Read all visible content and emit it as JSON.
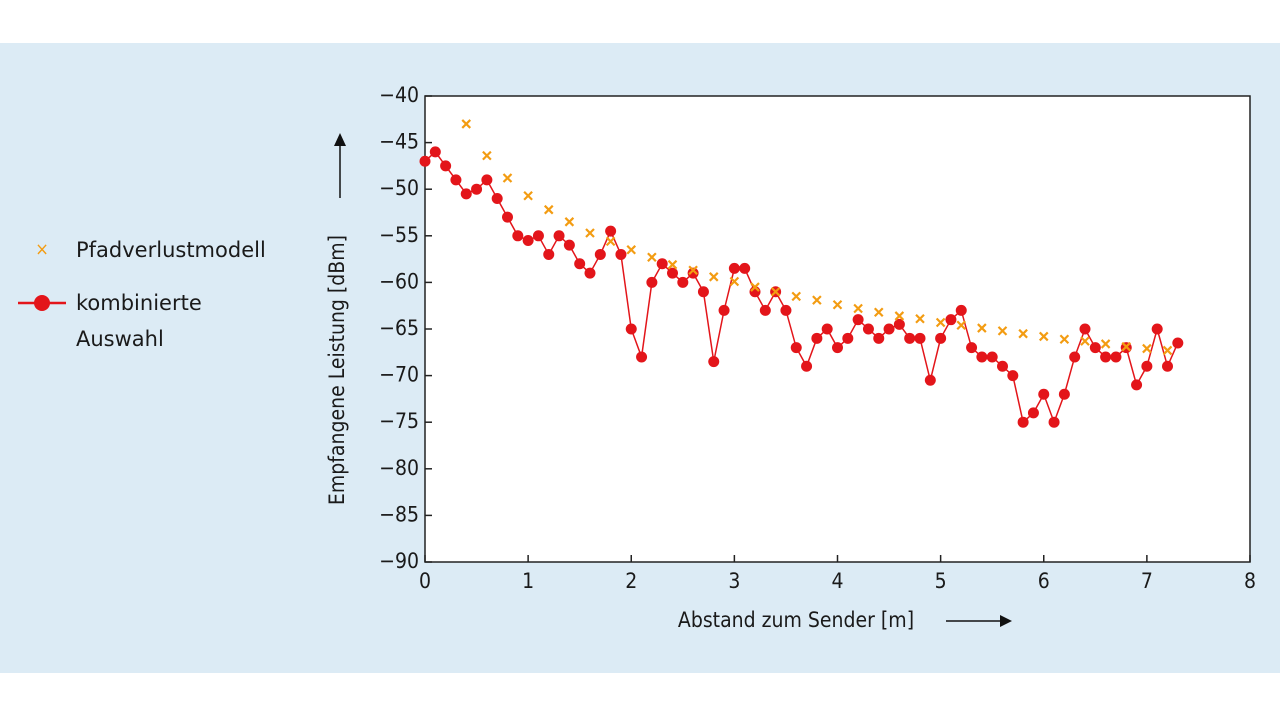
{
  "chart_data": {
    "type": "scatter",
    "xlabel": "Abstand zum Sender [m]",
    "ylabel": "Empfangene Leistung [dBm]",
    "xlim": [
      0,
      8
    ],
    "xticks": [
      0,
      1,
      2,
      3,
      4,
      5,
      6,
      7,
      8
    ],
    "ylim": [
      -90,
      -40
    ],
    "yticks": [
      {
        "value": -40,
        "label": "−40"
      },
      {
        "value": -45,
        "label": "−45"
      },
      {
        "value": -50,
        "label": "−50"
      },
      {
        "value": -55,
        "label": "−55"
      },
      {
        "value": -60,
        "label": "−60"
      },
      {
        "value": -65,
        "label": "−65"
      },
      {
        "value": -70,
        "label": "−70"
      },
      {
        "value": -75,
        "label": "−75"
      },
      {
        "value": -80,
        "label": "−80"
      },
      {
        "value": -85,
        "label": "−85"
      },
      {
        "value": -90,
        "label": "−90"
      }
    ],
    "series": [
      {
        "name": "Pfadverlustmodell",
        "color": "#f39c12",
        "marker": "x",
        "x": [
          0.4,
          0.6,
          0.8,
          1.0,
          1.2,
          1.4,
          1.6,
          1.8,
          2.0,
          2.2,
          2.4,
          2.6,
          2.8,
          3.0,
          3.2,
          3.4,
          3.6,
          3.8,
          4.0,
          4.2,
          4.4,
          4.6,
          4.8,
          5.0,
          5.2,
          5.4,
          5.6,
          5.8,
          6.0,
          6.2,
          6.4,
          6.6,
          6.8,
          7.0,
          7.2
        ],
        "values": [
          -43.0,
          -46.4,
          -48.8,
          -50.7,
          -52.2,
          -53.5,
          -54.7,
          -55.6,
          -56.5,
          -57.3,
          -58.1,
          -58.7,
          -59.4,
          -59.9,
          -60.5,
          -61.0,
          -61.5,
          -61.9,
          -62.4,
          -62.8,
          -63.2,
          -63.6,
          -63.9,
          -64.3,
          -64.6,
          -64.9,
          -65.2,
          -65.5,
          -65.8,
          -66.1,
          -66.3,
          -66.6,
          -66.9,
          -67.1,
          -67.3
        ]
      },
      {
        "name": "kombinierte Auswahl",
        "color": "#e3151a",
        "marker": "o-",
        "x": [
          0.0,
          0.1,
          0.2,
          0.3,
          0.4,
          0.5,
          0.6,
          0.7,
          0.8,
          0.9,
          1.0,
          1.1,
          1.2,
          1.3,
          1.4,
          1.5,
          1.6,
          1.7,
          1.8,
          1.9,
          2.0,
          2.1,
          2.2,
          2.3,
          2.4,
          2.5,
          2.6,
          2.7,
          2.8,
          2.9,
          3.0,
          3.1,
          3.2,
          3.3,
          3.4,
          3.5,
          3.6,
          3.7,
          3.8,
          3.9,
          4.0,
          4.1,
          4.2,
          4.3,
          4.4,
          4.5,
          4.6,
          4.7,
          4.8,
          4.9,
          5.0,
          5.1,
          5.2,
          5.3,
          5.4,
          5.5,
          5.6,
          5.7,
          5.8,
          5.9,
          6.0,
          6.1,
          6.2,
          6.3,
          6.4,
          6.5,
          6.6,
          6.7,
          6.8,
          6.9,
          7.0,
          7.1,
          7.2,
          7.3
        ],
        "values": [
          -47,
          -46,
          -47.5,
          -49,
          -50.5,
          -50,
          -49,
          -51,
          -53,
          -55,
          -55.5,
          -55,
          -57,
          -55,
          -56,
          -58,
          -59,
          -57,
          -54.5,
          -57,
          -65,
          -68,
          -60,
          -58,
          -59,
          -60,
          -59,
          -61,
          -68.5,
          -63,
          -58.5,
          -58.5,
          -61,
          -63,
          -61,
          -63,
          -67,
          -69,
          -66,
          -65,
          -67,
          -66,
          -64,
          -65,
          -66,
          -65,
          -64.5,
          -66,
          -66,
          -70.5,
          -66,
          -64,
          -63,
          -67,
          -68,
          -68,
          -69,
          -70,
          -75,
          -74,
          -72,
          -75,
          -72,
          -68,
          -65,
          -67,
          -68,
          -68,
          -67,
          -71,
          -69,
          -65,
          -69,
          -66.5
        ]
      }
    ]
  }
}
